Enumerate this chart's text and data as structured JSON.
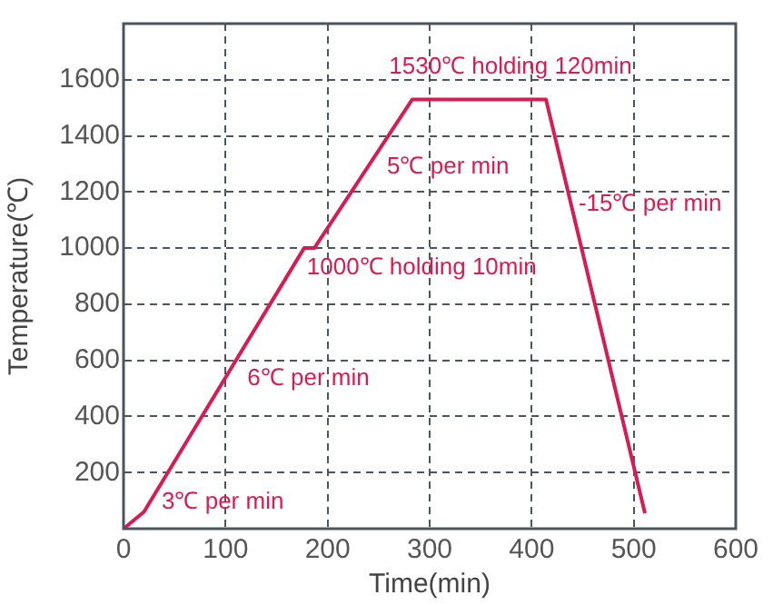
{
  "chart_data": {
    "type": "line",
    "xlabel": "Time(min)",
    "ylabel": "Temperature(℃)",
    "x": [
      0,
      20,
      177,
      187,
      283,
      414,
      511
    ],
    "series": [
      {
        "color": "#d81b50",
        "values": [
          0,
          60,
          1000,
          1000,
          1530,
          1530,
          55
        ]
      }
    ],
    "xlim": [
      0,
      600
    ],
    "xticks": [
      0,
      100,
      200,
      300,
      400,
      500,
      600
    ],
    "ylim": [
      0,
      1800
    ],
    "yticks": [
      200,
      400,
      600,
      800,
      1000,
      1200,
      1400,
      1600
    ],
    "grid": true,
    "legend": false,
    "marker": "none",
    "line_style": "solid",
    "annotations": [
      "1530℃ holding 120min",
      "5℃ per min",
      "-15℃ per min",
      "1000℃ holding 10min",
      "6℃ per min",
      "3℃ per min"
    ]
  }
}
